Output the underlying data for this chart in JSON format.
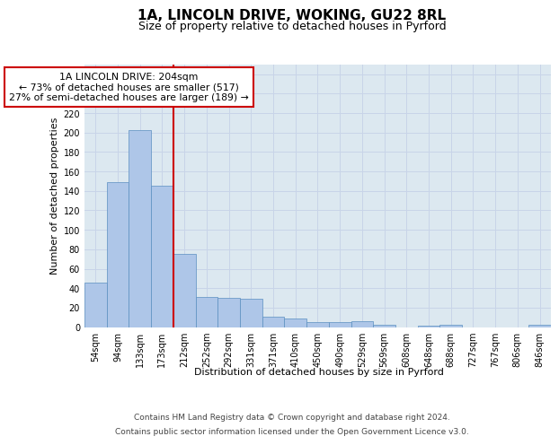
{
  "title": "1A, LINCOLN DRIVE, WOKING, GU22 8RL",
  "subtitle": "Size of property relative to detached houses in Pyrford",
  "xlabel": "Distribution of detached houses by size in Pyrford",
  "ylabel": "Number of detached properties",
  "bar_labels": [
    "54sqm",
    "94sqm",
    "133sqm",
    "173sqm",
    "212sqm",
    "252sqm",
    "292sqm",
    "331sqm",
    "371sqm",
    "410sqm",
    "450sqm",
    "490sqm",
    "529sqm",
    "569sqm",
    "608sqm",
    "648sqm",
    "688sqm",
    "727sqm",
    "767sqm",
    "806sqm",
    "846sqm"
  ],
  "bar_values": [
    46,
    149,
    203,
    145,
    75,
    31,
    30,
    29,
    11,
    9,
    5,
    5,
    6,
    2,
    0,
    1,
    2,
    0,
    0,
    0,
    2
  ],
  "bar_color": "#aec6e8",
  "bar_edge_color": "#5a8fc0",
  "vline_x_idx": 3.5,
  "vline_color": "#cc0000",
  "annotation_box_text": "1A LINCOLN DRIVE: 204sqm\n← 73% of detached houses are smaller (517)\n27% of semi-detached houses are larger (189) →",
  "annotation_box_color": "#cc0000",
  "annotation_box_bg": "#ffffff",
  "ylim": [
    0,
    270
  ],
  "yticks": [
    0,
    20,
    40,
    60,
    80,
    100,
    120,
    140,
    160,
    180,
    200,
    220,
    240,
    260
  ],
  "grid_color": "#c8d4e8",
  "bg_color": "#dce8f0",
  "footer_line1": "Contains HM Land Registry data © Crown copyright and database right 2024.",
  "footer_line2": "Contains public sector information licensed under the Open Government Licence v3.0.",
  "title_fontsize": 11,
  "subtitle_fontsize": 9,
  "axis_label_fontsize": 8,
  "tick_fontsize": 7,
  "footer_fontsize": 6.5,
  "annotation_fontsize": 7.8
}
